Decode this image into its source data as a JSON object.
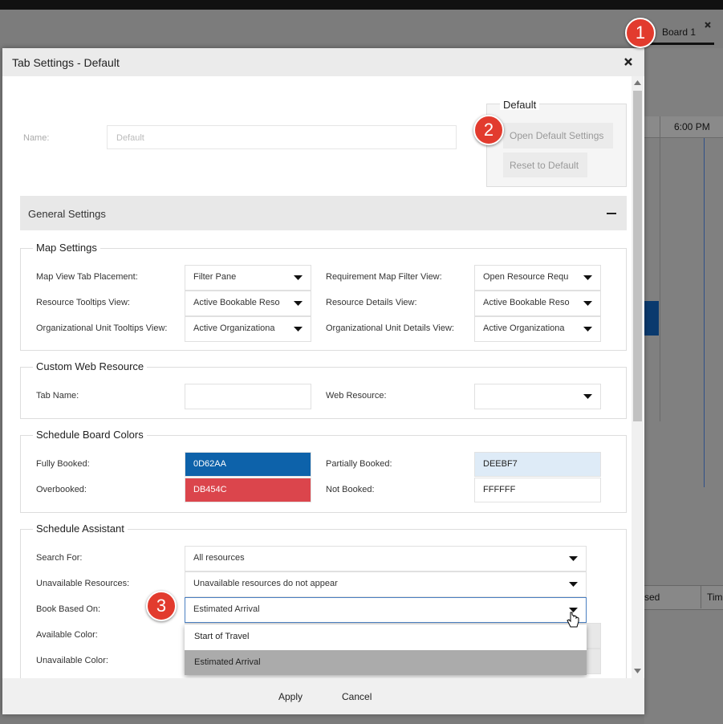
{
  "background": {
    "tab": "Board 1",
    "time": "6:00 PM",
    "column_1": "sed",
    "column_2": "Tim"
  },
  "callouts": [
    "1",
    "2",
    "3"
  ],
  "dialog": {
    "title": "Tab Settings - Default",
    "name": {
      "label": "Name:",
      "value": "Default"
    },
    "default_panel": {
      "legend": "Default",
      "buttons": [
        "Open Default Settings",
        "Reset to Default"
      ]
    },
    "general_settings": "General Settings",
    "map_settings": {
      "legend": "Map Settings",
      "fields": [
        {
          "label": "Map View Tab Placement:",
          "value": "Filter Pane"
        },
        {
          "label": "Requirement Map Filter View:",
          "value": "Open Resource Requ"
        },
        {
          "label": "Resource Tooltips View:",
          "value": "Active Bookable Reso"
        },
        {
          "label": "Resource Details View:",
          "value": "Active Bookable Reso"
        },
        {
          "label": "Organizational Unit Tooltips View:",
          "value": "Active Organizationa"
        },
        {
          "label": "Organizational Unit Details View:",
          "value": "Active Organizationa"
        }
      ]
    },
    "custom_web_resource": {
      "legend": "Custom Web Resource",
      "fields": [
        {
          "label": "Tab Name:"
        },
        {
          "label": "Web Resource:"
        }
      ]
    },
    "schedule_board_colors": {
      "legend": "Schedule Board Colors",
      "fields": [
        {
          "label": "Fully Booked:",
          "value": "0D62AA"
        },
        {
          "label": "Partially Booked:",
          "value": "DEEBF7"
        },
        {
          "label": "Overbooked:",
          "value": "DB454C"
        },
        {
          "label": "Not Booked:",
          "value": "FFFFFF"
        }
      ]
    },
    "schedule_assistant": {
      "legend": "Schedule Assistant",
      "fields": [
        {
          "label": "Search For:",
          "value": "All resources"
        },
        {
          "label": "Unavailable Resources:",
          "value": "Unavailable resources do not appear"
        },
        {
          "label": "Book Based On:",
          "value": "Estimated Arrival"
        },
        {
          "label": "Available Color:"
        },
        {
          "label": "Unavailable Color:"
        }
      ],
      "dropdown_options": [
        "Start of Travel",
        "Estimated Arrival"
      ]
    },
    "buttons": [
      "Apply",
      "Cancel"
    ]
  }
}
